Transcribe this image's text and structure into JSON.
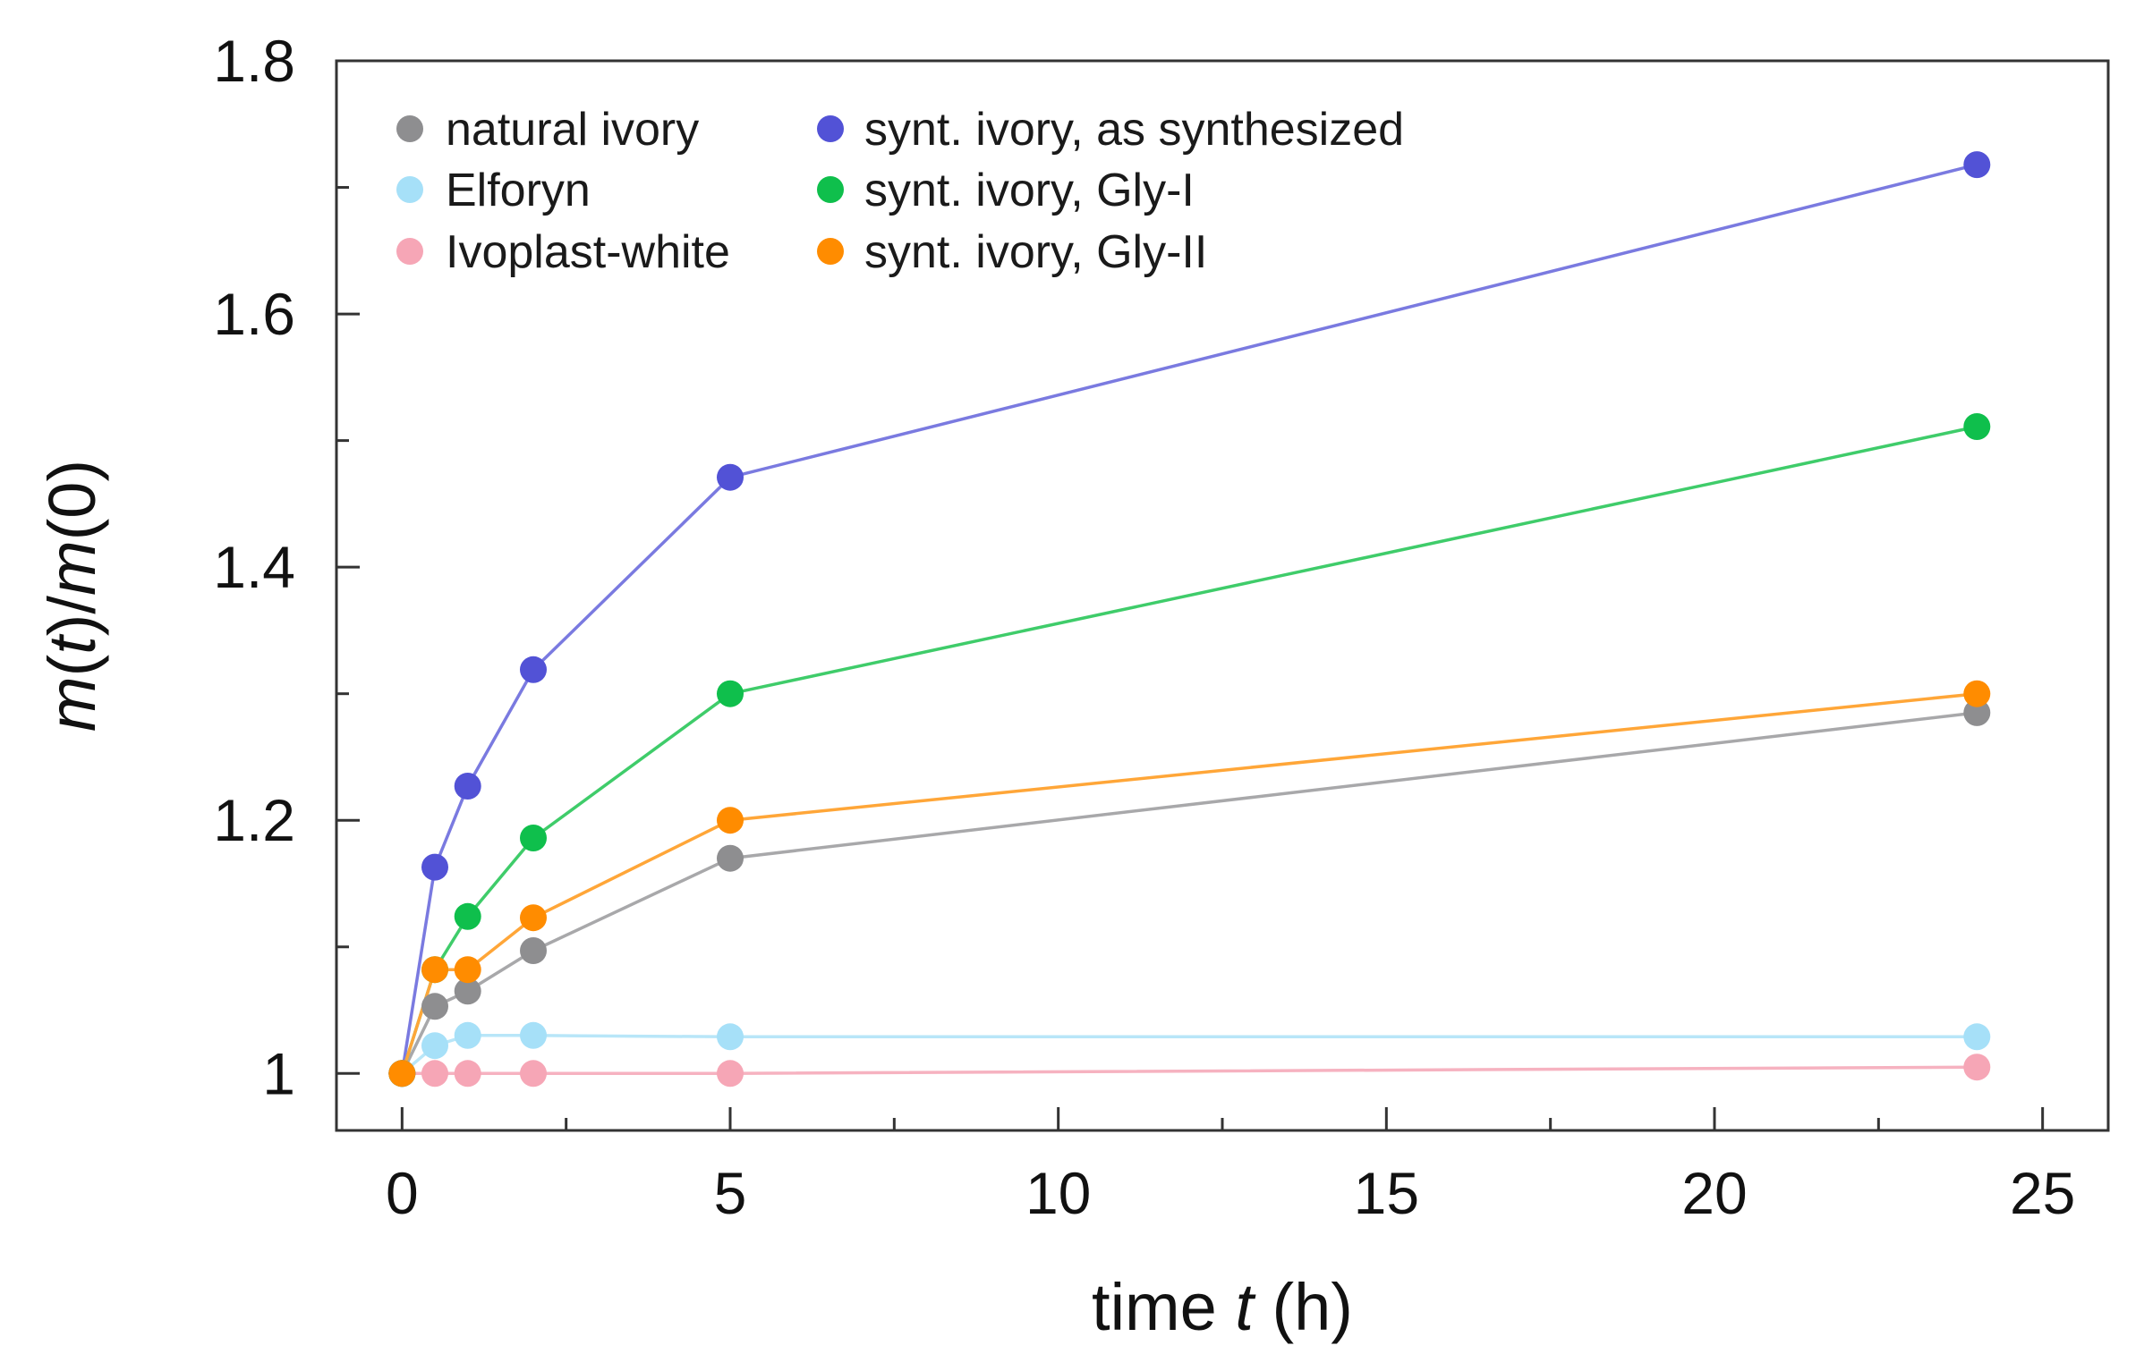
{
  "chart_data": {
    "type": "line",
    "title": "",
    "xlabel": {
      "prefix": "time ",
      "var": "t",
      "suffix": " (h)"
    },
    "ylabel": {
      "var1": "m",
      "mid1": "(",
      "arg1": "t",
      "mid2": ")/",
      "var2": "m",
      "tail": "(0)"
    },
    "xlim": [
      -1,
      26
    ],
    "ylim": [
      0.955,
      1.8
    ],
    "x_ticks": [
      0,
      5,
      10,
      15,
      20,
      25
    ],
    "x_tick_labels": [
      "0",
      "5",
      "10",
      "15",
      "20",
      "25"
    ],
    "y_ticks_major": [
      1.0,
      1.2,
      1.4,
      1.6,
      1.8
    ],
    "y_tick_labels": [
      "1",
      "1.2",
      "1.4",
      "1.6",
      "1.8"
    ],
    "y_ticks_minor": [
      1.1,
      1.3,
      1.5,
      1.7
    ],
    "x_ticks_minor": [
      2.5,
      7.5,
      12.5,
      17.5,
      22.5
    ],
    "grid": false,
    "legend_position": "top-left",
    "series": [
      {
        "name": "natural ivory",
        "point_color": "#8e8e90",
        "line_color": "#a8a8aa",
        "x": [
          0,
          0.5,
          1,
          2,
          5,
          24
        ],
        "y": [
          1.0,
          1.053,
          1.065,
          1.097,
          1.17,
          1.285
        ]
      },
      {
        "name": "Elforyn",
        "point_color": "#a6e0f8",
        "line_color": "#b8e6f8",
        "x": [
          0,
          0.5,
          1,
          2,
          5,
          24
        ],
        "y": [
          1.0,
          1.022,
          1.03,
          1.03,
          1.029,
          1.029
        ]
      },
      {
        "name": "Ivoplast-white",
        "point_color": "#f6a6b6",
        "line_color": "#f6b2c0",
        "x": [
          0,
          0.5,
          1,
          2,
          5,
          24
        ],
        "y": [
          1.0,
          1.0,
          1.0,
          1.0,
          1.0,
          1.005
        ]
      },
      {
        "name": "synt. ivory, as synthesized",
        "point_color": "#5252d6",
        "line_color": "#7a7ae0",
        "x": [
          0,
          0.5,
          1,
          2,
          5,
          24
        ],
        "y": [
          1.0,
          1.163,
          1.227,
          1.319,
          1.471,
          1.718
        ]
      },
      {
        "name": "synt. ivory, Gly-I",
        "point_color": "#0fbf4c",
        "line_color": "#3fcc6a",
        "x": [
          0,
          0.5,
          1,
          2,
          5,
          24
        ],
        "y": [
          1.0,
          1.082,
          1.124,
          1.186,
          1.3,
          1.511
        ]
      },
      {
        "name": "synt. ivory, Gly-II",
        "point_color": "#ff8c00",
        "line_color": "#ffa638",
        "x": [
          0,
          0.5,
          1,
          2,
          5,
          24
        ],
        "y": [
          1.0,
          1.082,
          1.082,
          1.123,
          1.2,
          1.3
        ]
      }
    ]
  }
}
